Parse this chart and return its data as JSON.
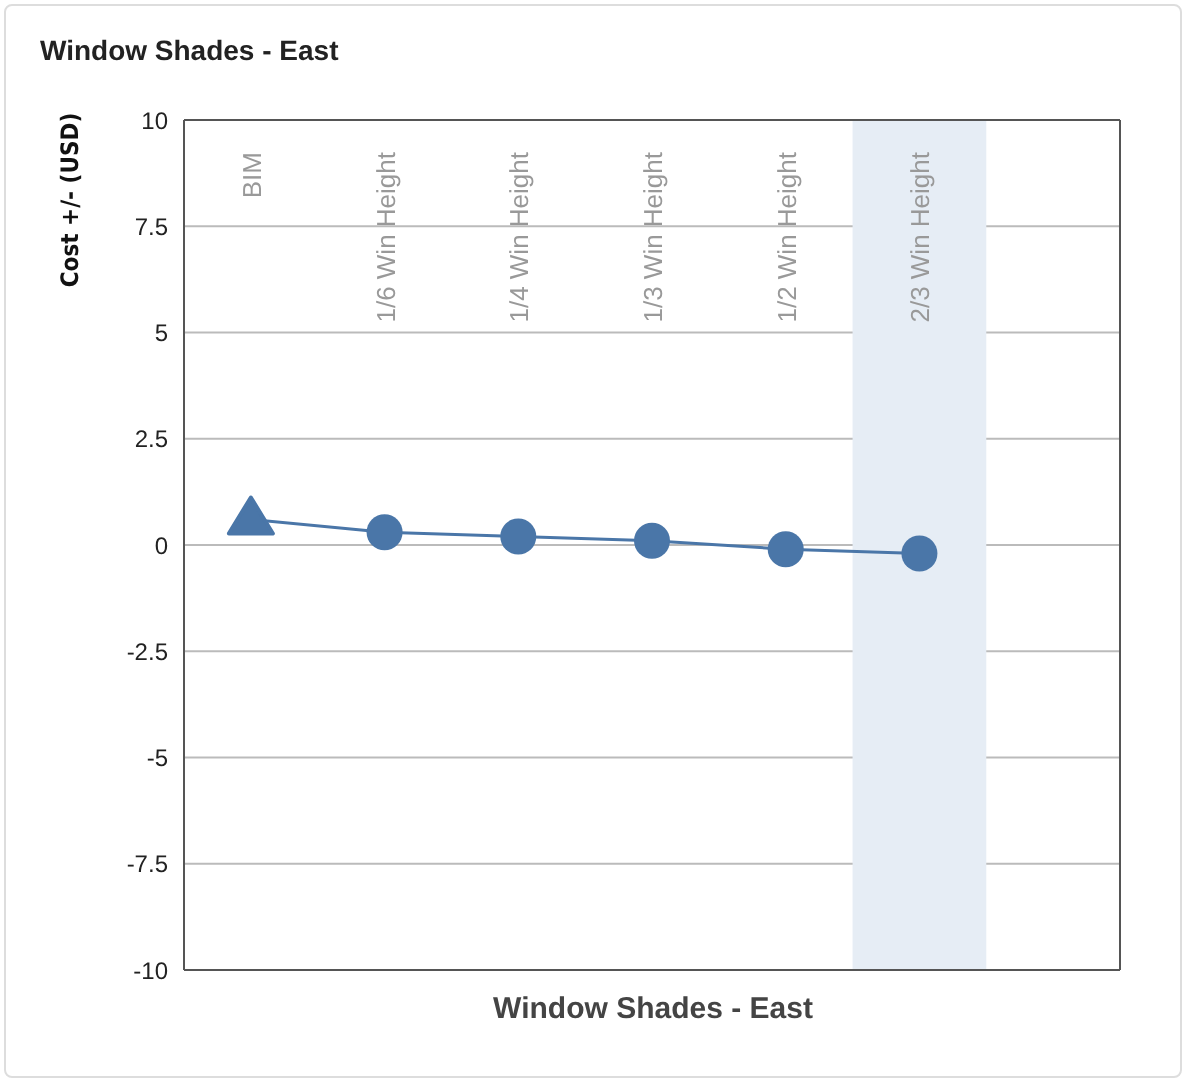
{
  "chart_data": {
    "type": "line",
    "title": "Window Shades - East",
    "xlabel": "Window Shades - East",
    "ylabel": "Cost +/- (USD)",
    "categories": [
      "BIM",
      "1/6 Win Height",
      "1/4 Win Height",
      "1/3 Win Height",
      "1/2 Win Height",
      "2/3 Win Height"
    ],
    "series": [
      {
        "color": "#4a76a8",
        "marker": "none",
        "values": [
          0.6,
          0.3,
          0.2,
          0.1,
          -0.1,
          -0.2
        ]
      },
      {
        "type": "scatter",
        "color": "#4a76a8",
        "marker": "triangle",
        "x": [
          "BIM"
        ],
        "values": [
          0.6
        ]
      },
      {
        "type": "scatter",
        "color": "#4a76a8",
        "marker": "circle",
        "x": [
          "1/6 Win Height",
          "1/4 Win Height",
          "1/3 Win Height",
          "1/2 Win Height",
          "2/3 Win Height"
        ],
        "values": [
          0.3,
          0.2,
          0.1,
          -0.1,
          -0.2
        ]
      }
    ],
    "ylim": [
      -10,
      10
    ],
    "yticks": [
      -10,
      -7.5,
      -5,
      -2.5,
      0,
      2.5,
      5,
      7.5,
      10
    ],
    "grid": "y",
    "bands": [
      {
        "axis": "x",
        "from": "2/3 Win Height",
        "to": "2/3 Win Height",
        "color": "#e6edf5"
      }
    ]
  }
}
